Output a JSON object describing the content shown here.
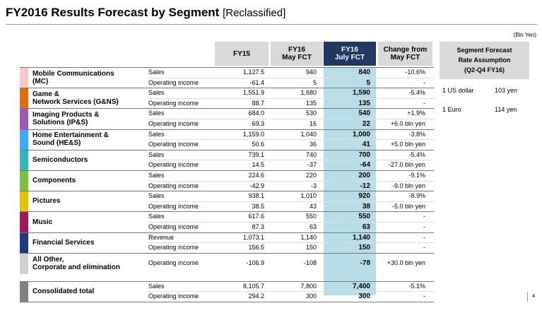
{
  "title": {
    "main": "FY2016  Results Forecast by Segment",
    "sub": "[Reclassified]"
  },
  "unit": "(Bln Yen)",
  "columns": {
    "fy15": "FY15",
    "may_l1": "FY16",
    "may_l2": "May FCT",
    "july_l1": "FY16",
    "july_l2": "July FCT",
    "chg_l1": "Change from",
    "chg_l2": "May FCT"
  },
  "rate": {
    "head_l1": "Segment Forecast",
    "head_l2": "Rate Assumption",
    "head_l3": "(Q2-Q4 FY16)",
    "usd_label": "1 US dollar",
    "usd_value": "103 yen",
    "eur_label": "1 Euro",
    "eur_value": "114 yen"
  },
  "segments": [
    {
      "name_l1": "Mobile Communications",
      "name_l2": "(MC)",
      "color": "#f4cccc",
      "rows": [
        [
          "Sales",
          "1,127.5",
          "940",
          "840",
          "-10.6%"
        ],
        [
          "Operating income",
          "-61.4",
          "5",
          "5",
          "-"
        ]
      ]
    },
    {
      "name_l1": "Game &",
      "name_l2": "Network Services (G&NS)",
      "color": "#e46c0a",
      "rows": [
        [
          "Sales",
          "1,551.9",
          "1,680",
          "1,590",
          "-5.4%"
        ],
        [
          "Operating income",
          "88.7",
          "135",
          "135",
          "-"
        ]
      ]
    },
    {
      "name_l1": "Imaging Products &",
      "name_l2": "Solutions (IP&S)",
      "color": "#9b59b6",
      "rows": [
        [
          "Sales",
          "684.0",
          "530",
          "540",
          "+1.9%"
        ],
        [
          "Operating income",
          "69.3",
          "16",
          "22",
          "+6.0 bln yen"
        ]
      ]
    },
    {
      "name_l1": "Home Entertainment &",
      "name_l2": "Sound (HE&S)",
      "color": "#3fa9f5",
      "rows": [
        [
          "Sales",
          "1,159.0",
          "1,040",
          "1,000",
          "-3.8%"
        ],
        [
          "Operating income",
          "50.6",
          "36",
          "41",
          "+5.0 bln yen"
        ]
      ]
    },
    {
      "name_l1": "Semiconductors",
      "name_l2": "",
      "color": "#2eb8b8",
      "rows": [
        [
          "Sales",
          "739.1",
          "740",
          "700",
          "-5.4%"
        ],
        [
          "Operating income",
          "14.5",
          "-37",
          "-64",
          "-27.0 bln yen"
        ]
      ]
    },
    {
      "name_l1": "Components",
      "name_l2": "",
      "color": "#7ac143",
      "rows": [
        [
          "Sales",
          "224.6",
          "220",
          "200",
          "-9.1%"
        ],
        [
          "Operating income",
          "-42.9",
          "-3",
          "-12",
          "-9.0 bln yen"
        ]
      ]
    },
    {
      "name_l1": "Pictures",
      "name_l2": "",
      "color": "#e6c300",
      "rows": [
        [
          "Sales",
          "938.1",
          "1,010",
          "920",
          "-8.9%"
        ],
        [
          "Operating income",
          "38.5",
          "43",
          "38",
          "-5.0 bln yen"
        ]
      ]
    },
    {
      "name_l1": "Music",
      "name_l2": "",
      "color": "#a0185a",
      "rows": [
        [
          "Sales",
          "617.6",
          "550",
          "550",
          "-"
        ],
        [
          "Operating income",
          "87.3",
          "63",
          "63",
          "-"
        ]
      ]
    },
    {
      "name_l1": "Financial Services",
      "name_l2": "",
      "color": "#1f3a7a",
      "rows": [
        [
          "Revenue",
          "1,073.1",
          "1,140",
          "1,140",
          "-"
        ],
        [
          "Operating income",
          "156.5",
          "150",
          "150",
          "-"
        ]
      ]
    },
    {
      "name_l1": "All Other,",
      "name_l2": "Corporate and elimination",
      "color": "#d0d0d0",
      "rows": [
        [
          "Operating income",
          "-106.9",
          "-108",
          "-78",
          "+30.0 bln yen"
        ]
      ]
    },
    {
      "name_l1": "Consolidated total",
      "name_l2": "",
      "color": "#808080",
      "rows": [
        [
          "Sales",
          "8,105.7",
          "7,800",
          "7,400",
          "-5.1%"
        ],
        [
          "Operating income",
          "294.2",
          "300",
          "300",
          "-"
        ]
      ]
    }
  ],
  "page_number": "4"
}
